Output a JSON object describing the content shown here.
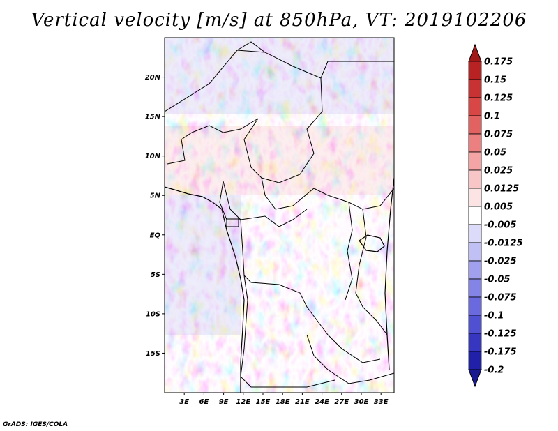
{
  "title": "Vertical velocity [m/s] at 850hPa, VT: 2019102206",
  "footer": "GrADS: IGES/COLA",
  "map": {
    "lon_range": [
      0,
      35
    ],
    "lat_range": [
      -20,
      25
    ],
    "lat_ticks": [
      "20N",
      "15N",
      "10N",
      "5N",
      "EQ",
      "5S",
      "10S",
      "15S"
    ],
    "lat_values": [
      20,
      15,
      10,
      5,
      0,
      -5,
      -10,
      -15
    ],
    "lon_ticks": [
      "3E",
      "6E",
      "9E",
      "12E",
      "15E",
      "18E",
      "21E",
      "24E",
      "27E",
      "30E",
      "33E"
    ],
    "lon_values": [
      3,
      6,
      9,
      12,
      15,
      18,
      21,
      24,
      27,
      30,
      33
    ]
  },
  "colorbar": {
    "labels": [
      "0.175",
      "0.15",
      "0.125",
      "0.1",
      "0.075",
      "0.05",
      "0.025",
      "0.0125",
      "0.005",
      "-0.005",
      "-0.0125",
      "-0.025",
      "-0.05",
      "-0.075",
      "-0.1",
      "-0.125",
      "-0.175",
      "-0.2"
    ],
    "colors": [
      "#a01818",
      "#b82222",
      "#c83232",
      "#d84646",
      "#e26262",
      "#ec8080",
      "#f4a4a4",
      "#f8c6c6",
      "#fce4e4",
      "#ffffff",
      "#dcdcfa",
      "#c0c0f4",
      "#a0a0ee",
      "#8484e6",
      "#6a6ade",
      "#5050d2",
      "#3636c0",
      "#2020a8",
      "#1a1a90"
    ]
  }
}
